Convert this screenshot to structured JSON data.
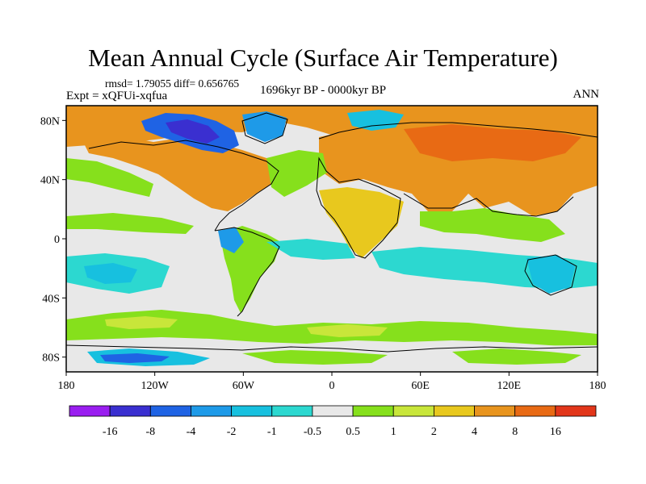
{
  "title": "Mean Annual Cycle (Surface Air Temperature)",
  "stats_line": "rmsd= 1.79055 diff= 0.656765",
  "experiment": "Expt = xQFUi-xqfua",
  "period": "1696kyr BP - 0000kyr BP",
  "season": "ANN",
  "map": {
    "lon_ticks": [
      "180",
      "120W",
      "60W",
      "0",
      "60E",
      "120E",
      "180"
    ],
    "lat_ticks": [
      "80N",
      "40N",
      "0",
      "40S",
      "80S"
    ]
  },
  "colorbar": {
    "colors": [
      "#9a1ef0",
      "#3a2fd0",
      "#1f63e4",
      "#1e9ae8",
      "#17c0df",
      "#2cd8d0",
      "#e8e8e8",
      "#86e01c",
      "#c8e63a",
      "#e8c81e",
      "#e8941e",
      "#e86a14",
      "#e2361a"
    ],
    "labels": [
      "-16",
      "-8",
      "-4",
      "-2",
      "-1",
      "-0.5",
      "0.5",
      "1",
      "2",
      "4",
      "8",
      "16"
    ]
  }
}
